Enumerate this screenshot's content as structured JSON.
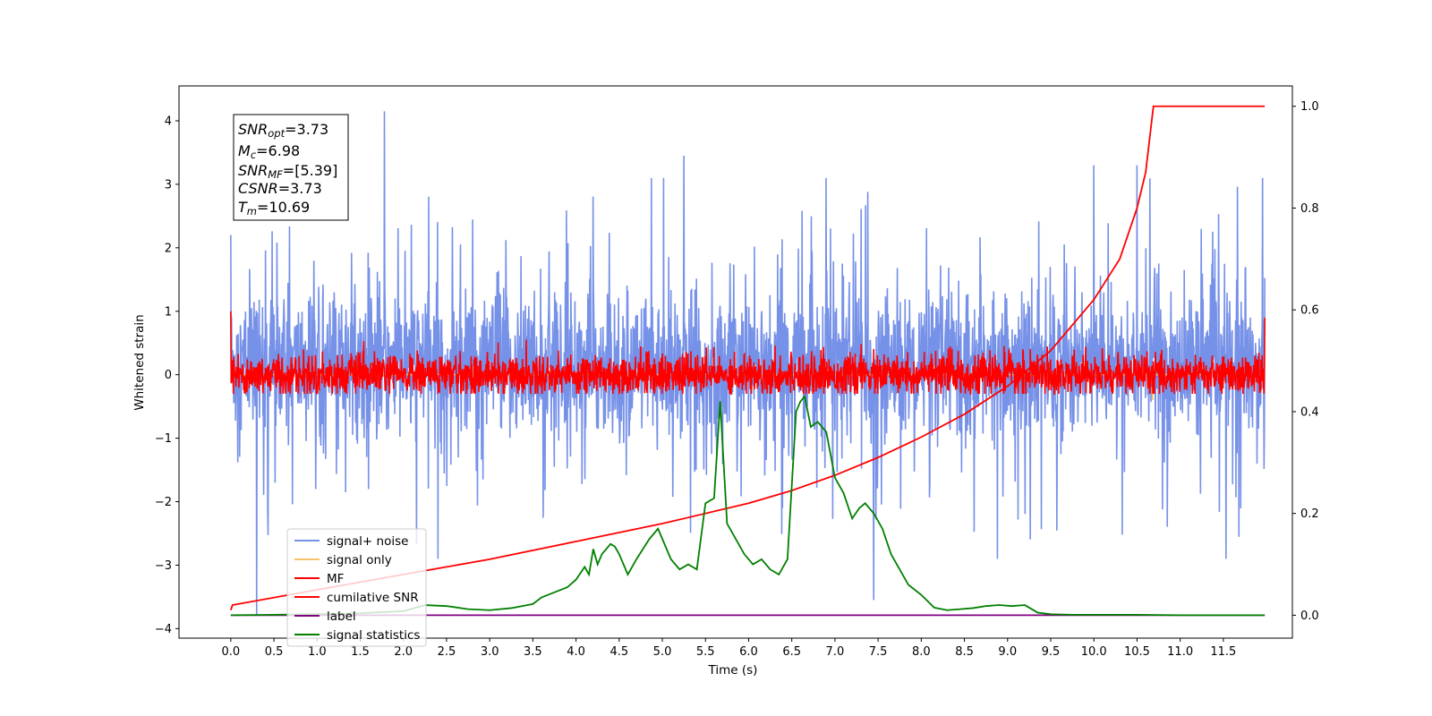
{
  "chart_data": {
    "type": "line",
    "xlabel": "Time (s)",
    "ylabel": "Whitened strain",
    "xlim": [
      -0.6,
      12.3
    ],
    "ylim": [
      -4.15,
      4.55
    ],
    "y2lim": [
      -0.045,
      1.04
    ],
    "x_ticks": [
      "0.0",
      "0.5",
      "1.0",
      "1.5",
      "2.0",
      "2.5",
      "3.0",
      "3.5",
      "4.0",
      "4.5",
      "5.0",
      "5.5",
      "6.0",
      "6.5",
      "7.0",
      "7.5",
      "8.0",
      "8.5",
      "9.0",
      "9.5",
      "10.0",
      "10.5",
      "11.0",
      "11.5"
    ],
    "y_ticks": [
      "−4",
      "−3",
      "−2",
      "−1",
      "0",
      "1",
      "2",
      "3",
      "4"
    ],
    "y2_ticks": [
      "0.0",
      "0.2",
      "0.4",
      "0.6",
      "0.8",
      "1.0"
    ],
    "annotation": {
      "snr_opt": {
        "sym": "SNR",
        "sub": "opt",
        "val": "=3.73"
      },
      "mc": {
        "sym": "M",
        "sub": "c",
        "val": "=6.98"
      },
      "snr_mf": {
        "sym": "SNR",
        "sub": "MF",
        "val": "=[5.39]"
      },
      "csnr": {
        "sym": "CSNR",
        "sub": "",
        "val": "=3.73"
      },
      "tm": {
        "sym": "T",
        "sub": "m",
        "val": "=10.69"
      }
    },
    "series": [
      {
        "name": "signal+ noise",
        "color": "#7691e8",
        "axis": "left",
        "x_range": [
          0,
          11.98
        ],
        "center": 0.15,
        "band": [
          -1.5,
          2.0
        ],
        "extremes": [
          [
            0.3,
            -3.8
          ],
          [
            1.78,
            4.15
          ],
          [
            5.25,
            3.45
          ],
          [
            7.45,
            -3.55
          ],
          [
            10.0,
            3.3
          ],
          [
            10.5,
            3.3
          ]
        ]
      },
      {
        "name": "signal only",
        "color": "#f5c26b",
        "axis": "left",
        "x_range": [
          0,
          11.98
        ],
        "values_note": "near zero",
        "blip": [
          10.68,
          -0.4
        ]
      },
      {
        "name": "MF",
        "color": "#ff0000",
        "axis": "left",
        "x_range": [
          0,
          11.98
        ],
        "center": 0.0,
        "band": [
          -0.3,
          0.55
        ],
        "endpoints": [
          [
            0.0,
            1.0
          ],
          [
            11.98,
            0.9
          ]
        ]
      },
      {
        "name": "cumilative SNR",
        "color": "#ff0000",
        "axis": "right",
        "x": [
          0,
          0.02,
          1,
          2,
          3,
          4,
          5,
          6,
          6.5,
          7,
          7.5,
          8,
          8.5,
          9,
          9.5,
          10,
          10.3,
          10.5,
          10.6,
          10.69,
          11.98
        ],
        "values": [
          0.01,
          0.02,
          0.05,
          0.08,
          0.11,
          0.145,
          0.18,
          0.22,
          0.245,
          0.275,
          0.31,
          0.35,
          0.395,
          0.45,
          0.52,
          0.62,
          0.7,
          0.8,
          0.87,
          1.0,
          1.0
        ]
      },
      {
        "name": "label",
        "color": "#800080",
        "axis": "right",
        "x": [
          0,
          11.98
        ],
        "values": [
          0.0,
          0.0
        ]
      },
      {
        "name": "signal statistics",
        "color": "#008000",
        "axis": "right",
        "x": [
          0,
          0.5,
          1,
          1.5,
          2,
          2.25,
          2.5,
          2.75,
          3,
          3.25,
          3.5,
          3.6,
          3.75,
          3.9,
          4,
          4.1,
          4.15,
          4.2,
          4.25,
          4.3,
          4.4,
          4.45,
          4.5,
          4.6,
          4.7,
          4.85,
          4.95,
          5.05,
          5.1,
          5.2,
          5.3,
          5.4,
          5.5,
          5.6,
          5.67,
          5.75,
          5.85,
          5.95,
          6.05,
          6.15,
          6.25,
          6.35,
          6.45,
          6.55,
          6.6,
          6.65,
          6.72,
          6.8,
          6.9,
          7,
          7.1,
          7.2,
          7.28,
          7.35,
          7.45,
          7.55,
          7.65,
          7.75,
          7.85,
          8,
          8.15,
          8.3,
          8.45,
          8.6,
          8.75,
          8.9,
          9.05,
          9.2,
          9.35,
          9.5,
          9.75,
          10,
          10.5,
          11,
          11.5,
          11.98
        ],
        "values": [
          0.0,
          0.001,
          0.002,
          0.004,
          0.008,
          0.02,
          0.018,
          0.012,
          0.01,
          0.014,
          0.022,
          0.035,
          0.045,
          0.055,
          0.07,
          0.095,
          0.08,
          0.13,
          0.1,
          0.12,
          0.14,
          0.135,
          0.12,
          0.08,
          0.11,
          0.15,
          0.17,
          0.13,
          0.11,
          0.09,
          0.1,
          0.09,
          0.22,
          0.23,
          0.42,
          0.18,
          0.15,
          0.12,
          0.1,
          0.11,
          0.09,
          0.08,
          0.11,
          0.4,
          0.42,
          0.43,
          0.37,
          0.38,
          0.36,
          0.27,
          0.24,
          0.19,
          0.21,
          0.22,
          0.2,
          0.17,
          0.12,
          0.09,
          0.06,
          0.04,
          0.015,
          0.01,
          0.012,
          0.014,
          0.018,
          0.02,
          0.018,
          0.02,
          0.005,
          0.002,
          0.001,
          0.001,
          0.001,
          0.0,
          0.0,
          0.0
        ]
      }
    ],
    "legend": {
      "placement": "lower-left",
      "entries": [
        "signal+ noise",
        "signal only",
        "MF",
        "cumilative SNR",
        "label",
        "signal statistics"
      ]
    }
  }
}
